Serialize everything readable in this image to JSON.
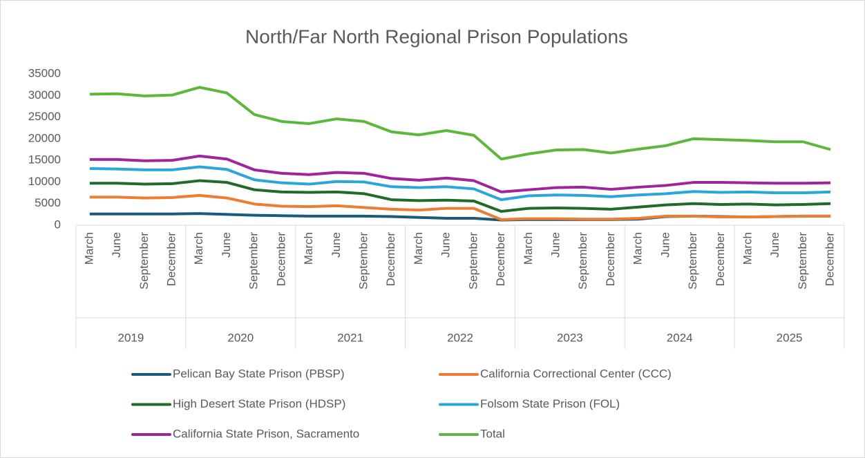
{
  "chart_data": {
    "type": "line",
    "title": "North/Far North Regional Prison Populations",
    "categories": [
      "March",
      "June",
      "September",
      "December",
      "March",
      "June",
      "September",
      "December",
      "March",
      "June",
      "September",
      "December",
      "March",
      "June",
      "September",
      "December",
      "March",
      "June",
      "September",
      "December",
      "March",
      "June",
      "September",
      "December",
      "March",
      "June",
      "September",
      "December"
    ],
    "years": [
      "2019",
      "2020",
      "2021",
      "2022",
      "2023",
      "2024",
      "2025"
    ],
    "ylim": [
      0,
      35000
    ],
    "yticks": [
      0,
      5000,
      10000,
      15000,
      20000,
      25000,
      30000,
      35000
    ],
    "grid": false,
    "legend": "bottom",
    "series": [
      {
        "name": "Pelican Bay State Prison (PBSP)",
        "color": "#1b5a7a",
        "values": [
          2600,
          2600,
          2600,
          2600,
          2700,
          2500,
          2300,
          2200,
          2100,
          2100,
          2100,
          2000,
          1800,
          1600,
          1600,
          1200,
          1300,
          1300,
          1300,
          1300,
          1400,
          2000,
          2100,
          2000,
          1900,
          2000,
          2100,
          2100
        ]
      },
      {
        "name": "California Correctional Center (CCC)",
        "color": "#ed7d31",
        "values": [
          6500,
          6500,
          6300,
          6400,
          6900,
          6300,
          4900,
          4400,
          4300,
          4500,
          4100,
          3700,
          3500,
          3900,
          3900,
          1300,
          1500,
          1500,
          1400,
          1400,
          1600,
          2100,
          2100,
          1900,
          1900,
          2000,
          2100,
          2100
        ]
      },
      {
        "name": "High Desert State Prison (HDSP)",
        "color": "#1e6b2a",
        "values": [
          9700,
          9700,
          9500,
          9600,
          10300,
          9900,
          8200,
          7700,
          7600,
          7700,
          7300,
          5900,
          5700,
          5800,
          5600,
          3200,
          3900,
          4000,
          3900,
          3700,
          4200,
          4700,
          5000,
          4800,
          4900,
          4700,
          4800,
          5000
        ]
      },
      {
        "name": "Folsom State Prison (FOL)",
        "color": "#2aa6dd",
        "values": [
          13100,
          13000,
          12800,
          12800,
          13500,
          12900,
          10500,
          9800,
          9500,
          10100,
          10000,
          8900,
          8700,
          8900,
          8400,
          5900,
          6800,
          7000,
          6900,
          6600,
          7000,
          7300,
          7800,
          7600,
          7700,
          7500,
          7500,
          7700
        ]
      },
      {
        "name": "California State Prison, Sacramento",
        "color": "#a0249c",
        "values": [
          15200,
          15200,
          14900,
          15000,
          16000,
          15300,
          12800,
          12000,
          11700,
          12200,
          12000,
          10800,
          10400,
          10900,
          10300,
          7700,
          8200,
          8700,
          8800,
          8300,
          8800,
          9200,
          9900,
          9900,
          9800,
          9700,
          9700,
          9800
        ]
      },
      {
        "name": "Total",
        "color": "#5cb83c",
        "values": [
          30300,
          30400,
          29900,
          30100,
          31900,
          30600,
          25600,
          24000,
          23500,
          24600,
          24000,
          21600,
          20900,
          21900,
          20800,
          15300,
          16500,
          17400,
          17500,
          16700,
          17600,
          18400,
          20000,
          19800,
          19600,
          19300,
          19300,
          17500
        ]
      }
    ]
  }
}
